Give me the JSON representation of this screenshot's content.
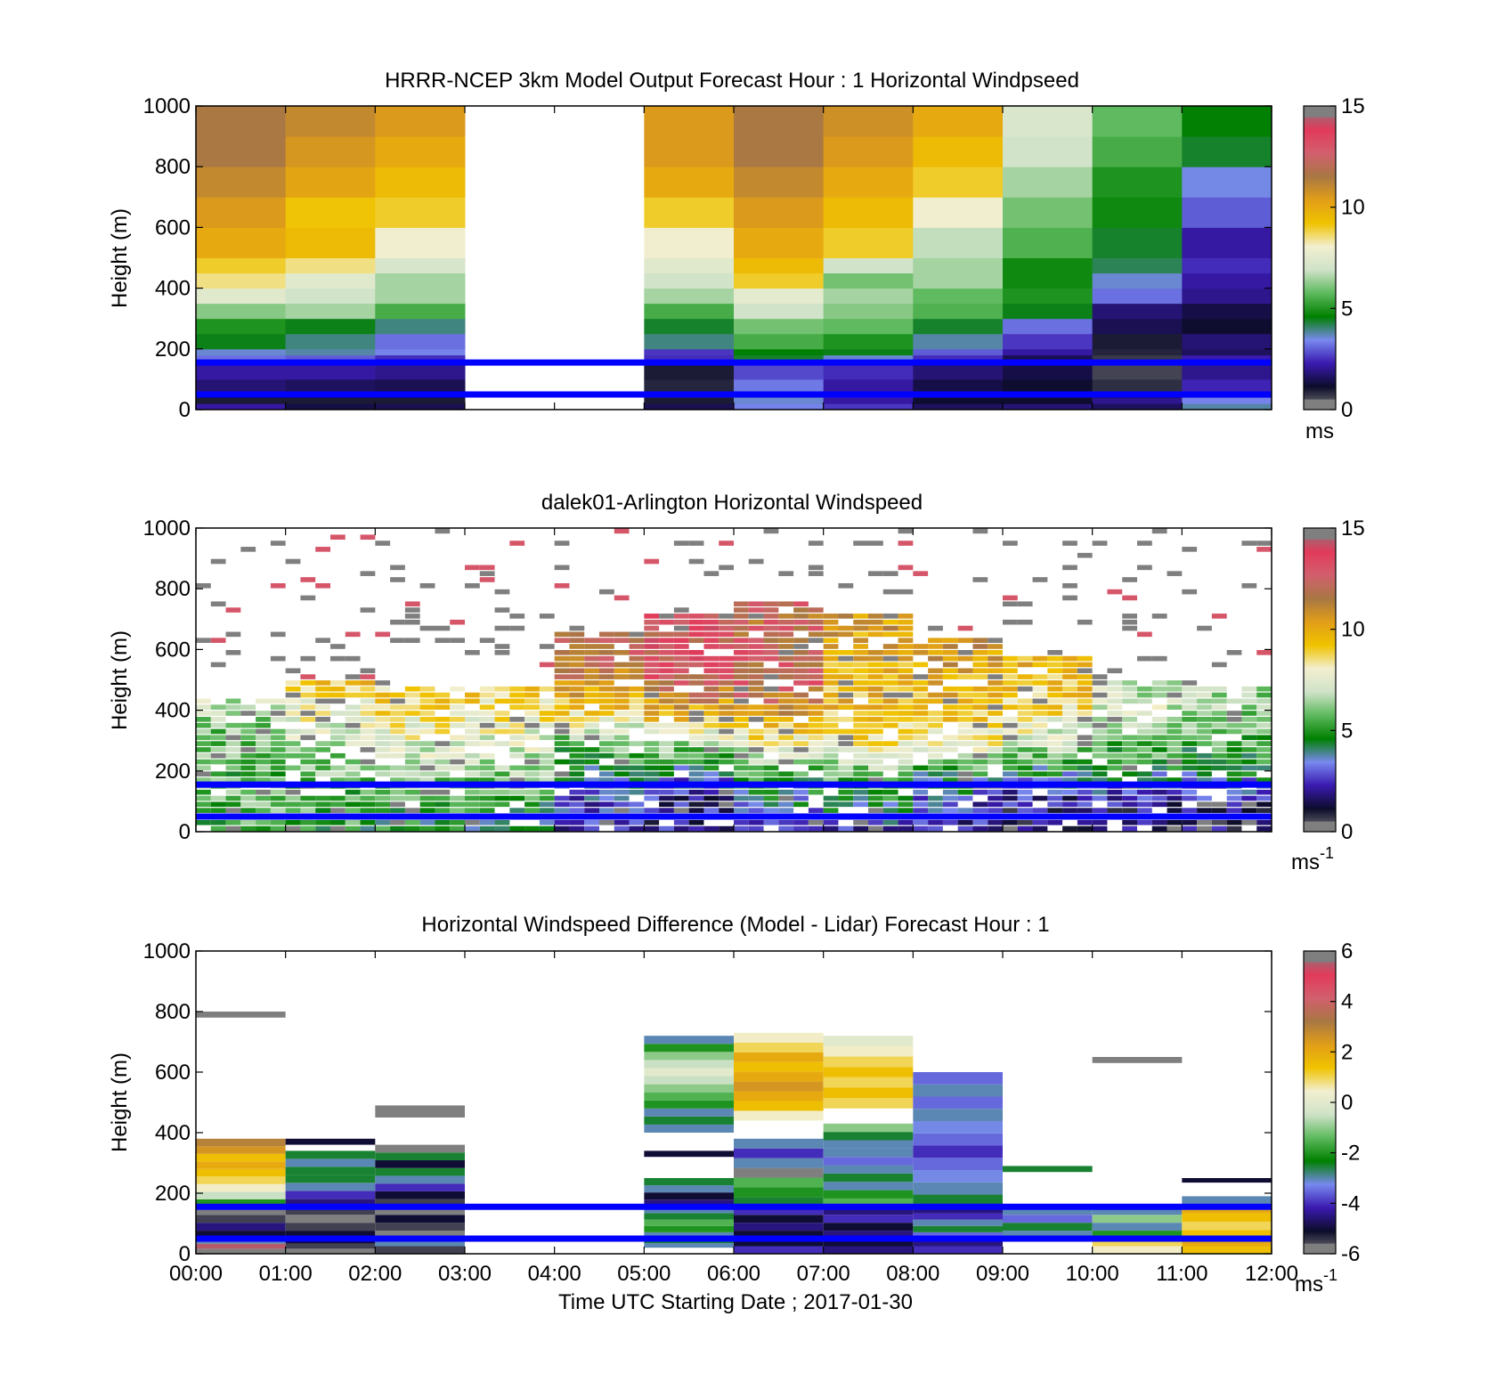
{
  "figure": {
    "xlabel": "Time UTC  Starting Date ; 2017-01-30",
    "xticks": [
      "00:00",
      "01:00",
      "02:00",
      "03:00",
      "04:00",
      "05:00",
      "06:00",
      "07:00",
      "08:00",
      "09:00",
      "10:00",
      "11:00",
      "12:00"
    ],
    "reference_heights_m": [
      50,
      155
    ],
    "reference_line_color": "#0000ff"
  },
  "colormap_windspeed": [
    "#7f7f7f",
    "#0c0c2a",
    "#3a1ab0",
    "#7889ee",
    "#008000",
    "#5db95d",
    "#cfe2c8",
    "#f2efd0",
    "#f0c300",
    "#e19e18",
    "#a87743",
    "#d2606e",
    "#e23a5a",
    "#7f7f7f"
  ],
  "colormap_difference": [
    "#7f7f7f",
    "#0c0c2a",
    "#3a1ab0",
    "#7889ee",
    "#008000",
    "#5db95d",
    "#cfe2c8",
    "#f2efd0",
    "#f0c300",
    "#e19e18",
    "#a87743",
    "#d2606e",
    "#e23a5a",
    "#7f7f7f"
  ],
  "chart_data": [
    {
      "type": "heatmap",
      "title": "HRRR-NCEP 3km Model Output   Forecast Hour : 1 Horizontal Windpseed",
      "ylabel": "Height (m)",
      "xlim": [
        0,
        12
      ],
      "ylim": [
        0,
        1000
      ],
      "yticks": [
        "0",
        "200",
        "400",
        "600",
        "800",
        "1000"
      ],
      "colorbar": {
        "ticks": [
          "0",
          "5",
          "10",
          "15"
        ],
        "range": [
          0,
          15
        ],
        "unit": "ms"
      },
      "hours": [
        0,
        1,
        2,
        5,
        6,
        7,
        8,
        9,
        10,
        11
      ],
      "missing_hours": [
        3,
        4
      ],
      "level_tops_m": [
        20,
        40,
        60,
        100,
        150,
        180,
        200,
        250,
        300,
        350,
        400,
        450,
        500,
        600,
        700,
        800,
        900,
        1000
      ],
      "values": [
        [
          2.2,
          1.0,
          1.2,
          1.8,
          2.2,
          3.2,
          3.6,
          4.5,
          5.0,
          6.2,
          7.5,
          8.5,
          9.0,
          10.0,
          10.5,
          11.0,
          11.5,
          11.5
        ],
        [
          1.4,
          1.0,
          1.3,
          1.6,
          2.2,
          3.0,
          3.8,
          4.0,
          4.5,
          6.5,
          7.0,
          7.5,
          8.5,
          9.5,
          9.2,
          10.2,
          10.6,
          11.0
        ],
        [
          1.5,
          1.0,
          1.2,
          1.5,
          2.0,
          2.5,
          3.4,
          3.2,
          4.0,
          5.5,
          6.5,
          6.5,
          7.2,
          8.0,
          9.0,
          9.5,
          10.0,
          10.5
        ],
        [
          1.5,
          1.0,
          0.8,
          0.9,
          1.0,
          2.5,
          2.6,
          4.0,
          4.4,
          5.5,
          6.5,
          7.0,
          7.5,
          8.0,
          9.0,
          10.0,
          10.5,
          10.5
        ],
        [
          3.4,
          3.6,
          3.8,
          3.3,
          2.8,
          4.4,
          4.6,
          5.5,
          6.0,
          7.0,
          7.6,
          9.0,
          9.5,
          10.0,
          10.5,
          11.0,
          11.5,
          11.5
        ],
        [
          2.6,
          2.2,
          2.4,
          2.2,
          2.5,
          3.6,
          4.5,
          5.0,
          5.8,
          6.2,
          6.5,
          6.0,
          7.0,
          9.0,
          9.5,
          10.0,
          10.5,
          10.8
        ],
        [
          1.6,
          1.2,
          1.5,
          1.4,
          1.8,
          2.5,
          3.0,
          3.8,
          4.4,
          5.6,
          5.8,
          6.5,
          6.5,
          6.8,
          8.0,
          9.0,
          9.5,
          10.0
        ],
        [
          1.8,
          1.2,
          1.0,
          1.2,
          1.4,
          1.5,
          2.2,
          2.6,
          3.2,
          4.5,
          5.0,
          4.8,
          4.8,
          5.6,
          6.0,
          6.5,
          7.0,
          7.3
        ],
        [
          1.6,
          2.0,
          1.2,
          0.8,
          0.6,
          0.7,
          0.9,
          1.0,
          1.5,
          1.8,
          3.2,
          3.6,
          4.2,
          4.4,
          4.8,
          5.0,
          5.5,
          5.8
        ],
        [
          3.8,
          3.4,
          3.0,
          2.4,
          2.0,
          2.3,
          1.6,
          1.8,
          1.2,
          1.4,
          2.0,
          2.2,
          2.5,
          2.2,
          3.0,
          3.5,
          4.4,
          4.6
        ]
      ]
    },
    {
      "type": "heatmap",
      "title": "dalek01-Arlington  Horizontal Windspeed",
      "ylabel": "Height (m)",
      "xlim": [
        0,
        12
      ],
      "ylim": [
        0,
        1000
      ],
      "yticks": [
        "0",
        "200",
        "400",
        "600",
        "800",
        "1000"
      ],
      "colorbar": {
        "ticks": [
          "0",
          "5",
          "10",
          "15"
        ],
        "range": [
          0,
          15
        ],
        "unit": "ms",
        "unit_exponent": "-1"
      },
      "hour_profile_anchors_m": [
        0,
        100,
        200,
        300,
        400,
        500,
        600,
        700,
        800,
        900,
        1000
      ],
      "hour_profiles": [
        [
          5.5,
          5.8,
          5.5,
          6.0,
          6.5,
          8.5,
          null,
          null,
          null,
          null,
          null
        ],
        [
          5.0,
          5.5,
          6.0,
          7.0,
          8.0,
          9.5,
          10.0,
          null,
          null,
          null,
          null
        ],
        [
          4.5,
          5.5,
          6.5,
          7.5,
          8.5,
          9.0,
          null,
          null,
          null,
          null,
          null
        ],
        [
          3.5,
          5.0,
          6.5,
          7.5,
          8.5,
          9.0,
          null,
          null,
          null,
          null,
          null
        ],
        [
          2.5,
          3.0,
          4.5,
          6.0,
          9.0,
          11.0,
          12.0,
          null,
          null,
          null,
          null
        ],
        [
          2.0,
          2.0,
          4.0,
          7.0,
          10.0,
          12.5,
          13.0,
          13.0,
          null,
          null,
          null
        ],
        [
          2.5,
          4.0,
          5.5,
          8.0,
          11.0,
          12.5,
          12.5,
          12.0,
          12.5,
          null,
          null
        ],
        [
          2.5,
          4.5,
          6.0,
          8.5,
          9.5,
          9.5,
          10.0,
          10.5,
          10.5,
          null,
          null
        ],
        [
          2.0,
          3.0,
          5.0,
          8.0,
          9.5,
          10.0,
          10.5,
          null,
          null,
          null,
          null
        ],
        [
          1.5,
          2.0,
          4.5,
          7.0,
          8.5,
          9.5,
          null,
          null,
          null,
          null,
          null
        ],
        [
          1.5,
          2.0,
          4.5,
          6.0,
          7.0,
          null,
          null,
          null,
          null,
          null,
          null
        ],
        [
          1.5,
          2.0,
          4.5,
          5.5,
          6.5,
          null,
          null,
          null,
          null,
          null,
          null
        ]
      ],
      "profile_max_height_m": [
        440,
        490,
        480,
        480,
        650,
        720,
        760,
        720,
        640,
        580,
        500,
        480
      ]
    },
    {
      "type": "heatmap",
      "title": "Horizontal Windspeed Difference (Model - Lidar) Forecast Hour : 1",
      "ylabel": "Height (m)",
      "xlim": [
        0,
        12
      ],
      "ylim": [
        0,
        1000
      ],
      "yticks": [
        "0",
        "200",
        "400",
        "600",
        "800",
        "1000"
      ],
      "colorbar": {
        "ticks": [
          "-6",
          "-4",
          "-2",
          "0",
          "2",
          "4",
          "6"
        ],
        "range": [
          -6,
          6
        ],
        "unit": "ms",
        "unit_exponent": "-1"
      },
      "segments": [
        {
          "hour": 0,
          "bottom": 0,
          "top": 50,
          "values": [
            6,
            5.5,
            -3
          ]
        },
        {
          "hour": 0,
          "bottom": 50,
          "top": 155,
          "values": [
            -5,
            -4.5,
            -5.5,
            -6
          ]
        },
        {
          "hour": 0,
          "bottom": 155,
          "top": 380,
          "values": [
            -2,
            -0.5,
            0.5,
            1,
            1.5,
            2,
            1.5,
            2.5,
            3
          ]
        },
        {
          "hour": 0,
          "bottom": 780,
          "top": 800,
          "values": [
            6
          ]
        },
        {
          "hour": 1,
          "bottom": 0,
          "top": 50,
          "values": [
            6,
            -5.5,
            -5
          ]
        },
        {
          "hour": 1,
          "bottom": 50,
          "top": 155,
          "values": [
            -5,
            -5.5,
            6,
            -5.5
          ]
        },
        {
          "hour": 1,
          "bottom": 155,
          "top": 340,
          "values": [
            -4.5,
            -4,
            -3,
            -2.5,
            -2.5,
            -3,
            -2.5
          ]
        },
        {
          "hour": 1,
          "bottom": 360,
          "top": 380,
          "values": [
            -5
          ]
        },
        {
          "hour": 2,
          "bottom": 0,
          "top": 50,
          "values": [
            -5.5,
            -3
          ]
        },
        {
          "hour": 2,
          "bottom": 50,
          "top": 155,
          "values": [
            6,
            -5.5,
            -5,
            6
          ]
        },
        {
          "hour": 2,
          "bottom": 155,
          "top": 360,
          "values": [
            -5.5,
            -5,
            -4,
            -3,
            -2.5,
            -5,
            -2.5,
            6
          ]
        },
        {
          "hour": 2,
          "bottom": 450,
          "top": 490,
          "values": [
            6
          ]
        },
        {
          "hour": 5,
          "bottom": 20,
          "top": 50,
          "values": [
            -3,
            -2.5
          ]
        },
        {
          "hour": 5,
          "bottom": 50,
          "top": 155,
          "values": [
            -3,
            -2,
            -1.5,
            -2.5,
            -3
          ]
        },
        {
          "hour": 5,
          "bottom": 155,
          "top": 250,
          "values": [
            -4.5,
            -5,
            -3,
            -2.5
          ]
        },
        {
          "hour": 5,
          "bottom": 320,
          "top": 340,
          "values": [
            -5
          ]
        },
        {
          "hour": 5,
          "bottom": 400,
          "top": 720,
          "values": [
            -3,
            -2.5,
            -3,
            -2,
            -1.5,
            -1,
            -0.5,
            0,
            -0.5,
            -1,
            -2,
            -3
          ]
        },
        {
          "hour": 6,
          "bottom": 0,
          "top": 50,
          "values": [
            -4,
            -5
          ]
        },
        {
          "hour": 6,
          "bottom": 50,
          "top": 155,
          "values": [
            -5,
            -4.5,
            -5,
            -4
          ]
        },
        {
          "hour": 6,
          "bottom": 155,
          "top": 380,
          "values": [
            -2.5,
            -2,
            -1.5,
            6,
            -3,
            -4,
            -3
          ]
        },
        {
          "hour": 6,
          "bottom": 440,
          "top": 730,
          "values": [
            0.5,
            1.5,
            2,
            2.5,
            2,
            1.5,
            2,
            1,
            0.5
          ]
        },
        {
          "hour": 7,
          "bottom": 0,
          "top": 50,
          "values": [
            -4.5,
            -5
          ]
        },
        {
          "hour": 7,
          "bottom": 50,
          "top": 155,
          "values": [
            -4.5,
            -5,
            -4,
            -4.5
          ]
        },
        {
          "hour": 7,
          "bottom": 155,
          "top": 430,
          "values": [
            -1.5,
            -2,
            -3,
            -2.5,
            -3,
            -3.5,
            -3,
            -3,
            -2.5,
            -1
          ]
        },
        {
          "hour": 7,
          "bottom": 480,
          "top": 720,
          "values": [
            1,
            1.5,
            1,
            1.5,
            1,
            0.5,
            0
          ]
        },
        {
          "hour": 8,
          "bottom": 0,
          "top": 50,
          "values": [
            -4,
            -4.5
          ]
        },
        {
          "hour": 8,
          "bottom": 50,
          "top": 155,
          "values": [
            -3.5,
            -2.5,
            -3,
            -4,
            -4.5
          ]
        },
        {
          "hour": 8,
          "bottom": 155,
          "top": 600,
          "values": [
            -2.5,
            -3,
            -3.2,
            -3.5,
            -4,
            -3.5,
            -3.2,
            -3,
            -3.5,
            -3,
            -3.5
          ]
        },
        {
          "hour": 9,
          "bottom": 50,
          "top": 155,
          "values": [
            -3,
            -2.5,
            -3.5,
            -3
          ]
        },
        {
          "hour": 9,
          "bottom": 270,
          "top": 290,
          "values": [
            -2.5
          ]
        },
        {
          "hour": 10,
          "bottom": 0,
          "top": 50,
          "values": [
            0.5,
            1
          ]
        },
        {
          "hour": 10,
          "bottom": 50,
          "top": 155,
          "values": [
            -2,
            -3,
            -1,
            -3
          ]
        },
        {
          "hour": 10,
          "bottom": 630,
          "top": 650,
          "values": [
            6
          ]
        },
        {
          "hour": 11,
          "bottom": 0,
          "top": 50,
          "values": [
            1.5,
            2
          ]
        },
        {
          "hour": 11,
          "bottom": 50,
          "top": 190,
          "values": [
            1.5,
            1,
            1.5,
            2,
            -3
          ]
        },
        {
          "hour": 11,
          "bottom": 235,
          "top": 250,
          "values": [
            -5
          ]
        }
      ]
    }
  ]
}
